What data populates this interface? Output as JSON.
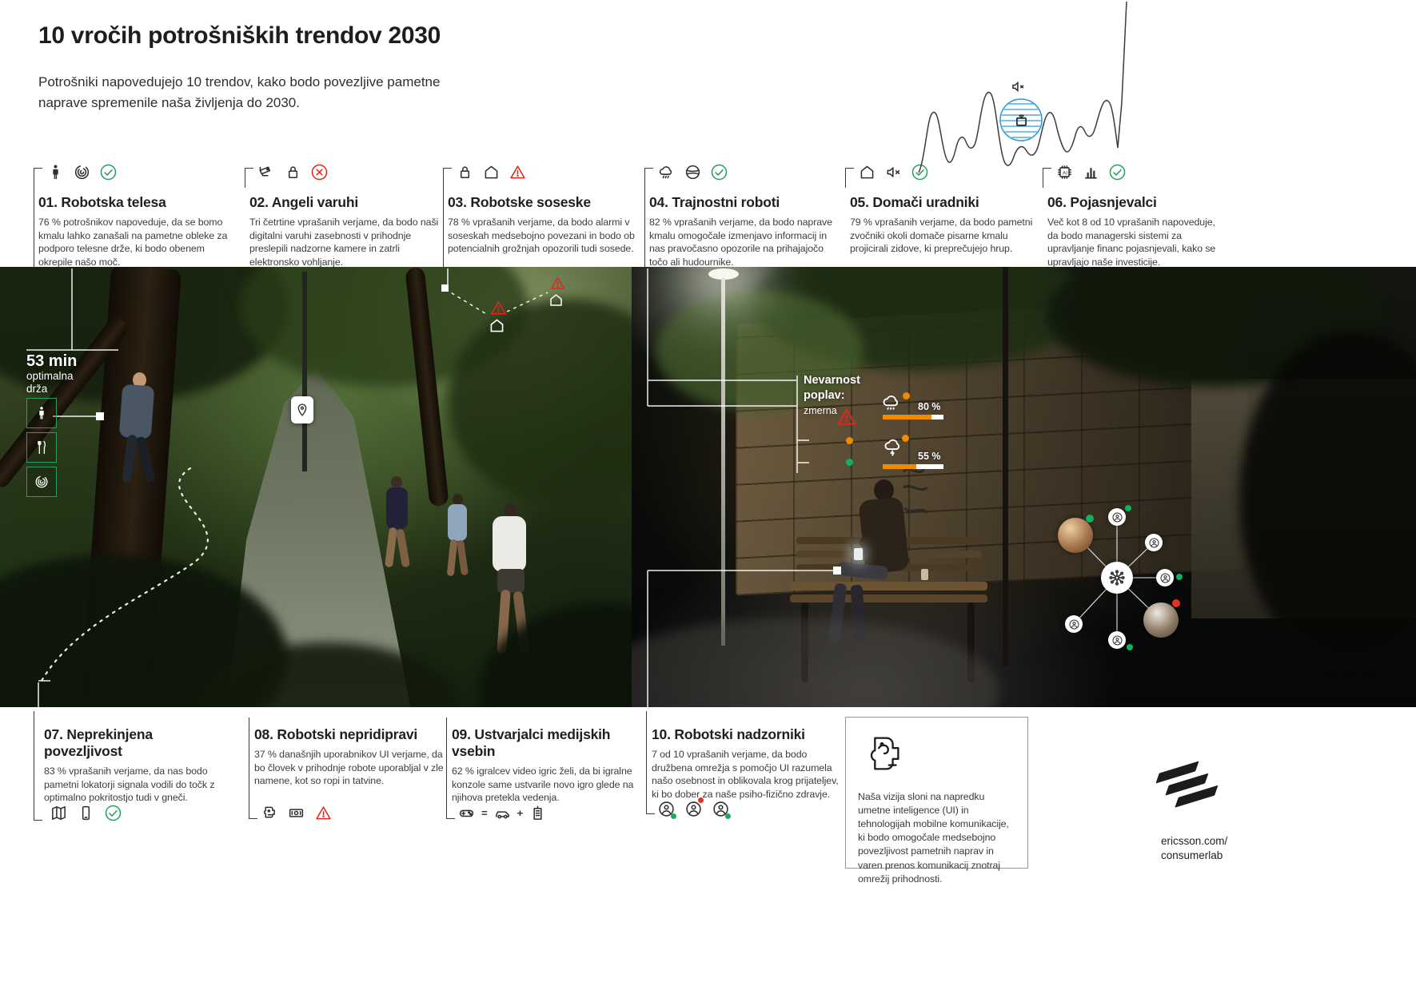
{
  "header": {
    "title": "10 vročih potrošniških trendov 2030",
    "subtitle": "Potrošniki napovedujejo 10 trendov, kako bodo povezljive pametne naprave spremenile naša življenja do 2030."
  },
  "trends_top": [
    {
      "title": "01. Robotska telesa",
      "body": "76 % potrošnikov napoveduje, da se bomo kmalu lahko zanašali na pametne obleke za podporo telesne drže, ki bodo obenem okrepile našo moč.",
      "icons": [
        "person-icon",
        "fingerprint-icon",
        "check-circle-icon"
      ]
    },
    {
      "title": "02. Angeli varuhi",
      "body": "Tri četrtine vprašanih verjame, da bodo naši digitalni varuhi zasebnosti v prihodnje preslepili nadzorne kamere in zatrli elektronsko vohljanje.",
      "icons": [
        "cctv-camera-icon",
        "padlock-icon",
        "x-circle-icon"
      ]
    },
    {
      "title": "03. Robotske soseske",
      "body": "78 % vprašanih verjame, da bodo alarmi v soseskah medsebojno povezani in bodo ob potencialnih grožnjah opozorili tudi sosede.",
      "icons": [
        "padlock-icon",
        "house-icon",
        "warning-triangle-icon"
      ]
    },
    {
      "title": "04. Trajnostni roboti",
      "body": "82 % vprašanih verjame, da bodo naprave kmalu omogočale izmenjavo informacij in nas pravočasno opozorile na prihajajočo točo ali hudournike.",
      "icons": [
        "rain-cloud-icon",
        "planet-icon",
        "check-circle-icon"
      ]
    },
    {
      "title": "05. Domači uradniki",
      "body": "79 % vprašanih verjame, da bodo pametni zvočniki okoli domače pisarne kmalu projicirali zidove, ki preprečujejo hrup.",
      "icons": [
        "house-icon",
        "speaker-mute-icon",
        "check-circle-icon"
      ]
    },
    {
      "title": "06. Pojasnjevalci",
      "body": "Več kot 8 od 10 vprašanih napoveduje, da bodo managerski sistemi za upravljanje financ pojasnjevali, kako se upravljajo naše investicije.",
      "icons": [
        "ai-chip-icon",
        "bar-chart-icon",
        "check-circle-icon"
      ]
    }
  ],
  "trends_bottom": [
    {
      "title": "07. Neprekinjena povezljivost",
      "body": "83 % vprašanih verjame, da nas bodo pametni lokatorji signala vodili do točk z optimalno pokritostjo tudi v gneči.",
      "icons": [
        "map-icon",
        "mobile-phone-icon",
        "check-circle-icon"
      ]
    },
    {
      "title": "08. Robotski nepridipravi",
      "body": "37 % današnjih uporabnikov UI verjame, da bo človek v prihodnje robote uporabljal v zle namene, kot so ropi in tatvine.",
      "icons": [
        "robot-head-icon",
        "banknote-icon",
        "warning-triangle-icon"
      ]
    },
    {
      "title": "09. Ustvarjalci medijskih vsebin",
      "body": "62 % igralcev video igric želi, da bi igralne konzole same ustvarile novo igro glede na njihova pretekla vedenja.",
      "icons": [
        "game-controller-icon",
        "equals-sign",
        "car-icon",
        "plus-sign",
        "building-icon"
      ]
    },
    {
      "title": "10. Robotski nadzorniki",
      "body": "7 od 10 vprašanih verjame, da bodo družbena omrežja s pomočjo UI razumela našo osebnost in oblikovala krog prijateljev, ki bo dober za naše psiho-fizično zdravje.",
      "icons": [
        "user-circle-icon",
        "user-circle-icon",
        "user-circle-icon"
      ]
    }
  ],
  "icon_labels": {
    "ai": "AI",
    "equals": "=",
    "plus": "+"
  },
  "overlay_left": {
    "time": "53 min",
    "caption_line1": "optimalna",
    "caption_line2": "drža",
    "boxes": [
      "person-icon",
      "cutlery-icon",
      "fingerprint-icon"
    ]
  },
  "overlay_right": {
    "warning_title_line1": "Nevarnost",
    "warning_title_line2": "poplav:",
    "warning_level": "zmerna",
    "gauges": [
      {
        "label": "80 %",
        "percent": 80,
        "icon": "rain-cloud-icon"
      },
      {
        "label": "55 %",
        "percent": 55,
        "icon": "storm-cloud-icon"
      }
    ]
  },
  "vision_box": {
    "text": "Naša vizija sloni na napredku umetne inteligence (UI) in tehnologijah mobilne komunikacije, ki bodo omogočale medsebojno povezljivost pametnih naprav in varen prenos komunikacij znotraj omrežij prihodnosti."
  },
  "footer": {
    "site_line1": "ericsson.com/",
    "site_line2": "consumerlab"
  },
  "colors": {
    "green": "#27a05c",
    "red": "#e0261c",
    "orange": "#f08a00",
    "blue": "#2f9bd8"
  }
}
